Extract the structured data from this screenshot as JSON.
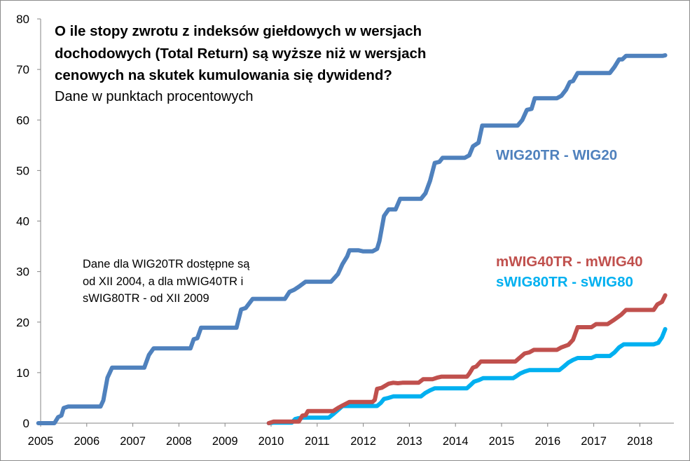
{
  "chart_data": {
    "type": "line",
    "title": "O ile stopy zwrotu z indeksów giełdowych w wersjach dochodowych  (Total Return) są wyższe niż w wersjach cenowych na skutek kumulowania się dywidend?",
    "title_lines": [
      "O ile stopy zwrotu z indeksów giełdowych w wersjach",
      "dochodowych  (Total Return) są wyższe niż w wersjach",
      "cenowych na skutek kumulowania się dywidend?"
    ],
    "subtitle": "Dane w punktach procentowych",
    "annotation_lines": [
      "Dane dla WIG20TR dostępne są",
      "od XII 2004, a dla mWIG40TR i",
      "sWIG80TR - od XII 2009"
    ],
    "xlabel": "",
    "ylabel": "",
    "xlim": [
      2005,
      2018.6
    ],
    "ylim": [
      0,
      80
    ],
    "x_ticks": [
      "2005",
      "2006",
      "2007",
      "2008",
      "2009",
      "2010",
      "2011",
      "2012",
      "2013",
      "2014",
      "2015",
      "2016",
      "2017",
      "2018"
    ],
    "y_ticks": [
      "0",
      "10",
      "20",
      "30",
      "40",
      "50",
      "60",
      "70",
      "80"
    ],
    "grid": false,
    "legend": "inline labels next to series",
    "series": [
      {
        "name": "WIG20TR - WIG20",
        "color": "#4f81bd",
        "points": [
          [
            2004.95,
            0
          ],
          [
            2005.3,
            0
          ],
          [
            2005.38,
            1.2
          ],
          [
            2005.45,
            1.5
          ],
          [
            2005.5,
            3.0
          ],
          [
            2005.6,
            3.3
          ],
          [
            2006.3,
            3.3
          ],
          [
            2006.36,
            4.5
          ],
          [
            2006.45,
            9.0
          ],
          [
            2006.55,
            11.0
          ],
          [
            2007.25,
            11.0
          ],
          [
            2007.35,
            13.5
          ],
          [
            2007.45,
            14.8
          ],
          [
            2008.25,
            14.8
          ],
          [
            2008.32,
            16.6
          ],
          [
            2008.4,
            16.8
          ],
          [
            2008.48,
            18.9
          ],
          [
            2009.25,
            18.9
          ],
          [
            2009.35,
            22.5
          ],
          [
            2009.45,
            22.8
          ],
          [
            2009.6,
            24.6
          ],
          [
            2010.3,
            24.6
          ],
          [
            2010.4,
            26.0
          ],
          [
            2010.5,
            26.4
          ],
          [
            2010.6,
            27.0
          ],
          [
            2010.75,
            28.0
          ],
          [
            2011.3,
            28.0
          ],
          [
            2011.45,
            29.5
          ],
          [
            2011.55,
            31.5
          ],
          [
            2011.65,
            33.0
          ],
          [
            2011.7,
            34.2
          ],
          [
            2011.9,
            34.2
          ],
          [
            2012.0,
            34.0
          ],
          [
            2012.2,
            34.0
          ],
          [
            2012.3,
            34.5
          ],
          [
            2012.35,
            36.0
          ],
          [
            2012.45,
            41.0
          ],
          [
            2012.55,
            42.3
          ],
          [
            2012.7,
            42.3
          ],
          [
            2012.8,
            44.4
          ],
          [
            2013.25,
            44.4
          ],
          [
            2013.35,
            45.5
          ],
          [
            2013.45,
            48.0
          ],
          [
            2013.55,
            51.5
          ],
          [
            2013.65,
            51.7
          ],
          [
            2013.72,
            52.5
          ],
          [
            2014.2,
            52.5
          ],
          [
            2014.3,
            53.0
          ],
          [
            2014.38,
            54.8
          ],
          [
            2014.5,
            55.5
          ],
          [
            2014.58,
            58.9
          ],
          [
            2015.35,
            58.9
          ],
          [
            2015.45,
            60.0
          ],
          [
            2015.55,
            62.0
          ],
          [
            2015.65,
            62.2
          ],
          [
            2015.72,
            64.3
          ],
          [
            2016.2,
            64.3
          ],
          [
            2016.3,
            64.8
          ],
          [
            2016.4,
            66.0
          ],
          [
            2016.48,
            67.5
          ],
          [
            2016.55,
            67.7
          ],
          [
            2016.65,
            69.3
          ],
          [
            2017.35,
            69.3
          ],
          [
            2017.45,
            70.5
          ],
          [
            2017.55,
            72.0
          ],
          [
            2017.62,
            72.0
          ],
          [
            2017.7,
            72.7
          ],
          [
            2018.5,
            72.7
          ],
          [
            2018.55,
            72.8
          ]
        ]
      },
      {
        "name": "mWIG40TR - mWIG40",
        "color": "#c0504d",
        "points": [
          [
            2009.95,
            0
          ],
          [
            2010.05,
            0.3
          ],
          [
            2010.6,
            0.3
          ],
          [
            2010.68,
            1.5
          ],
          [
            2010.75,
            1.6
          ],
          [
            2010.8,
            2.4
          ],
          [
            2011.35,
            2.4
          ],
          [
            2011.45,
            3.0
          ],
          [
            2011.55,
            3.5
          ],
          [
            2011.7,
            4.2
          ],
          [
            2012.2,
            4.2
          ],
          [
            2012.25,
            4.6
          ],
          [
            2012.3,
            6.8
          ],
          [
            2012.4,
            7.0
          ],
          [
            2012.55,
            7.8
          ],
          [
            2012.65,
            8.0
          ],
          [
            2012.75,
            7.9
          ],
          [
            2012.85,
            8.0
          ],
          [
            2013.2,
            8.0
          ],
          [
            2013.3,
            8.7
          ],
          [
            2013.5,
            8.7
          ],
          [
            2013.6,
            9.0
          ],
          [
            2013.7,
            9.2
          ],
          [
            2014.25,
            9.2
          ],
          [
            2014.3,
            9.8
          ],
          [
            2014.38,
            11.0
          ],
          [
            2014.45,
            11.2
          ],
          [
            2014.55,
            12.2
          ],
          [
            2015.3,
            12.2
          ],
          [
            2015.4,
            13.0
          ],
          [
            2015.5,
            13.8
          ],
          [
            2015.6,
            14.0
          ],
          [
            2015.7,
            14.5
          ],
          [
            2016.2,
            14.5
          ],
          [
            2016.3,
            15.0
          ],
          [
            2016.45,
            15.5
          ],
          [
            2016.55,
            16.5
          ],
          [
            2016.65,
            19.0
          ],
          [
            2016.95,
            19.0
          ],
          [
            2017.05,
            19.6
          ],
          [
            2017.3,
            19.6
          ],
          [
            2017.45,
            20.5
          ],
          [
            2017.6,
            21.5
          ],
          [
            2017.7,
            22.4
          ],
          [
            2018.3,
            22.4
          ],
          [
            2018.38,
            23.5
          ],
          [
            2018.48,
            24.0
          ],
          [
            2018.55,
            25.3
          ]
        ]
      },
      {
        "name": "sWIG80TR - sWIG80",
        "color": "#00b0f0",
        "points": [
          [
            2009.95,
            0
          ],
          [
            2010.05,
            0.1
          ],
          [
            2010.45,
            0.1
          ],
          [
            2010.52,
            0.8
          ],
          [
            2010.6,
            1.0
          ],
          [
            2010.7,
            1.1
          ],
          [
            2011.25,
            1.1
          ],
          [
            2011.35,
            1.8
          ],
          [
            2011.45,
            2.6
          ],
          [
            2011.55,
            3.4
          ],
          [
            2012.3,
            3.4
          ],
          [
            2012.38,
            4.0
          ],
          [
            2012.45,
            4.8
          ],
          [
            2012.55,
            5.0
          ],
          [
            2012.65,
            5.3
          ],
          [
            2013.25,
            5.3
          ],
          [
            2013.35,
            6.0
          ],
          [
            2013.45,
            6.5
          ],
          [
            2013.55,
            6.9
          ],
          [
            2014.25,
            6.9
          ],
          [
            2014.32,
            7.5
          ],
          [
            2014.4,
            8.2
          ],
          [
            2014.5,
            8.5
          ],
          [
            2014.6,
            8.9
          ],
          [
            2015.25,
            8.9
          ],
          [
            2015.32,
            9.3
          ],
          [
            2015.4,
            9.8
          ],
          [
            2015.5,
            10.2
          ],
          [
            2015.6,
            10.5
          ],
          [
            2016.25,
            10.5
          ],
          [
            2016.35,
            11.2
          ],
          [
            2016.45,
            12.0
          ],
          [
            2016.55,
            12.5
          ],
          [
            2016.65,
            12.9
          ],
          [
            2016.95,
            12.9
          ],
          [
            2017.05,
            13.3
          ],
          [
            2017.35,
            13.3
          ],
          [
            2017.45,
            14.0
          ],
          [
            2017.55,
            15.0
          ],
          [
            2017.65,
            15.6
          ],
          [
            2018.3,
            15.6
          ],
          [
            2018.4,
            15.9
          ],
          [
            2018.48,
            17.0
          ],
          [
            2018.55,
            18.6
          ]
        ]
      }
    ]
  }
}
